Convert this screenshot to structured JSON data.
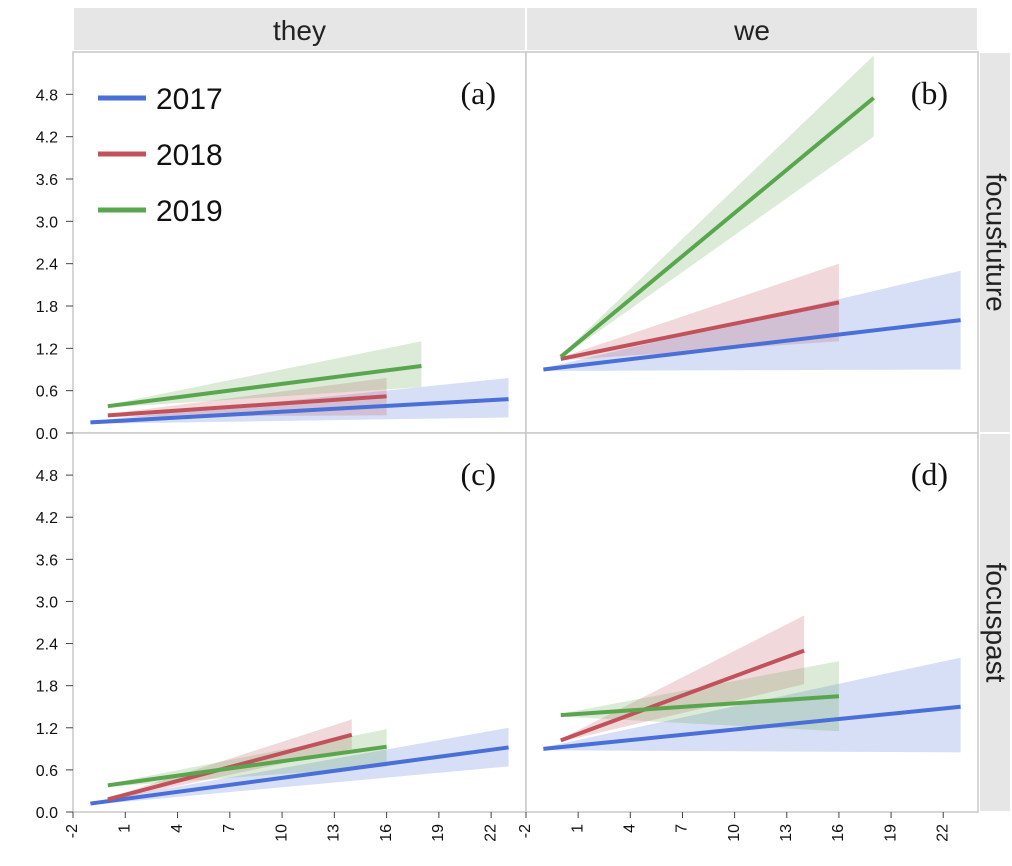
{
  "chart_data": {
    "type": "line",
    "facet_columns": [
      "they",
      "we"
    ],
    "facet_rows": [
      "focusfuture",
      "focuspast"
    ],
    "y_ticks": [
      "0.0",
      "0.6",
      "1.2",
      "1.8",
      "2.4",
      "3.0",
      "3.6",
      "4.2",
      "4.8"
    ],
    "x_ticks": [
      "-2",
      "1",
      "4",
      "7",
      "10",
      "13",
      "16",
      "19",
      "22"
    ],
    "xlim": [
      -2,
      24
    ],
    "ylim": [
      0,
      5.4
    ],
    "legend": {
      "placement": "top-left",
      "entries": [
        {
          "name": "2017",
          "color": "#4a6fd6"
        },
        {
          "name": "2018",
          "color": "#c1525b"
        },
        {
          "name": "2019",
          "color": "#5aa64f"
        }
      ]
    },
    "panels": [
      {
        "label": "(a)",
        "column": "they",
        "row": "focusfuture",
        "series": [
          {
            "name": "2017",
            "x": [
              -1,
              23
            ],
            "y": [
              0.15,
              0.48
            ],
            "band_lower": [
              0.13,
              0.22
            ],
            "band_upper": [
              0.17,
              0.78
            ]
          },
          {
            "name": "2018",
            "x": [
              0,
              16
            ],
            "y": [
              0.25,
              0.52
            ],
            "band_lower": [
              0.23,
              0.25
            ],
            "band_upper": [
              0.27,
              0.78
            ]
          },
          {
            "name": "2019",
            "x": [
              0,
              18
            ],
            "y": [
              0.38,
              0.95
            ],
            "band_lower": [
              0.36,
              0.65
            ],
            "band_upper": [
              0.4,
              1.3
            ]
          }
        ]
      },
      {
        "label": "(b)",
        "column": "we",
        "row": "focusfuture",
        "series": [
          {
            "name": "2017",
            "x": [
              -1,
              23
            ],
            "y": [
              0.9,
              1.6
            ],
            "band_lower": [
              0.88,
              0.9
            ],
            "band_upper": [
              0.92,
              2.3
            ]
          },
          {
            "name": "2018",
            "x": [
              0,
              16
            ],
            "y": [
              1.05,
              1.85
            ],
            "band_lower": [
              1.03,
              1.3
            ],
            "band_upper": [
              1.07,
              2.4
            ]
          },
          {
            "name": "2019",
            "x": [
              0,
              18
            ],
            "y": [
              1.08,
              4.75
            ],
            "band_lower": [
              1.06,
              4.2
            ],
            "band_upper": [
              1.1,
              5.35
            ]
          }
        ]
      },
      {
        "label": "(c)",
        "column": "they",
        "row": "focuspast",
        "series": [
          {
            "name": "2017",
            "x": [
              -1,
              23
            ],
            "y": [
              0.12,
              0.92
            ],
            "band_lower": [
              0.1,
              0.65
            ],
            "band_upper": [
              0.14,
              1.2
            ]
          },
          {
            "name": "2018",
            "x": [
              0,
              14
            ],
            "y": [
              0.18,
              1.1
            ],
            "band_lower": [
              0.16,
              0.9
            ],
            "band_upper": [
              0.2,
              1.32
            ]
          },
          {
            "name": "2019",
            "x": [
              0,
              16
            ],
            "y": [
              0.38,
              0.93
            ],
            "band_lower": [
              0.36,
              0.65
            ],
            "band_upper": [
              0.4,
              1.18
            ]
          }
        ]
      },
      {
        "label": "(d)",
        "column": "we",
        "row": "focuspast",
        "series": [
          {
            "name": "2017",
            "x": [
              -1,
              23
            ],
            "y": [
              0.9,
              1.5
            ],
            "band_lower": [
              0.88,
              0.85
            ],
            "band_upper": [
              0.92,
              2.2
            ]
          },
          {
            "name": "2018",
            "x": [
              0,
              14
            ],
            "y": [
              1.02,
              2.3
            ],
            "band_lower": [
              1.0,
              1.82
            ],
            "band_upper": [
              1.04,
              2.8
            ]
          },
          {
            "name": "2019",
            "x": [
              0,
              16
            ],
            "y": [
              1.38,
              1.65
            ],
            "band_lower": [
              1.36,
              1.15
            ],
            "band_upper": [
              1.4,
              2.15
            ]
          }
        ]
      }
    ]
  }
}
